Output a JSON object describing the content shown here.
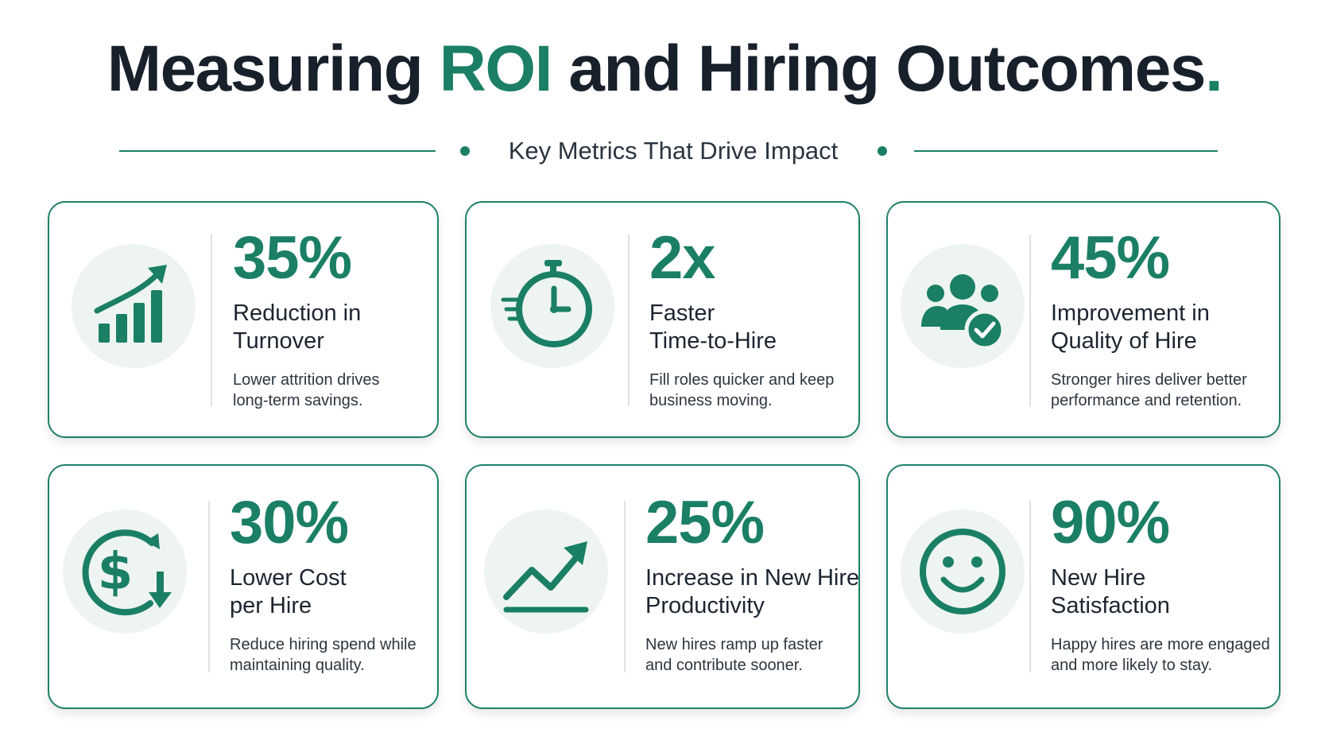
{
  "header": {
    "title_part1": "Measuring ",
    "title_accent": "ROI",
    "title_part2": " and Hiring Outcomes",
    "title_end": ".",
    "subtitle": "Key Metrics That Drive Impact"
  },
  "colors": {
    "accent": "#1a7f65",
    "icon_bg": "#edf4f1",
    "title": "#18202c"
  },
  "cards": [
    {
      "icon": "bar-chart-up-icon",
      "metric": "35%",
      "label_line1": "Reduction in",
      "label_line2": "Turnover",
      "desc_line1": "Lower attrition drives",
      "desc_line2": "long-term savings."
    },
    {
      "icon": "stopwatch-icon",
      "metric": "2x",
      "label_line1": "Faster",
      "label_line2": "Time-to-Hire",
      "desc_line1": "Fill roles quicker and keep",
      "desc_line2": "business moving."
    },
    {
      "icon": "team-check-icon",
      "metric": "45%",
      "label_line1": "Improvement in",
      "label_line2": "Quality of Hire",
      "desc_line1": "Stronger hires deliver better",
      "desc_line2": "performance and retention."
    },
    {
      "icon": "dollar-down-icon",
      "metric": "30%",
      "label_line1": "Lower Cost",
      "label_line2": "per Hire",
      "desc_line1": "Reduce hiring spend while",
      "desc_line2": "maintaining quality."
    },
    {
      "icon": "trend-up-icon",
      "metric": "25%",
      "label_line1": "Increase in New Hire",
      "label_line2": "Productivity",
      "desc_line1": "New hires ramp up faster",
      "desc_line2": "and contribute sooner."
    },
    {
      "icon": "smiley-icon",
      "metric": "90%",
      "label_line1": "New Hire",
      "label_line2": "Satisfaction",
      "desc_line1": "Happy hires are more engaged",
      "desc_line2": "and more likely to stay."
    }
  ]
}
